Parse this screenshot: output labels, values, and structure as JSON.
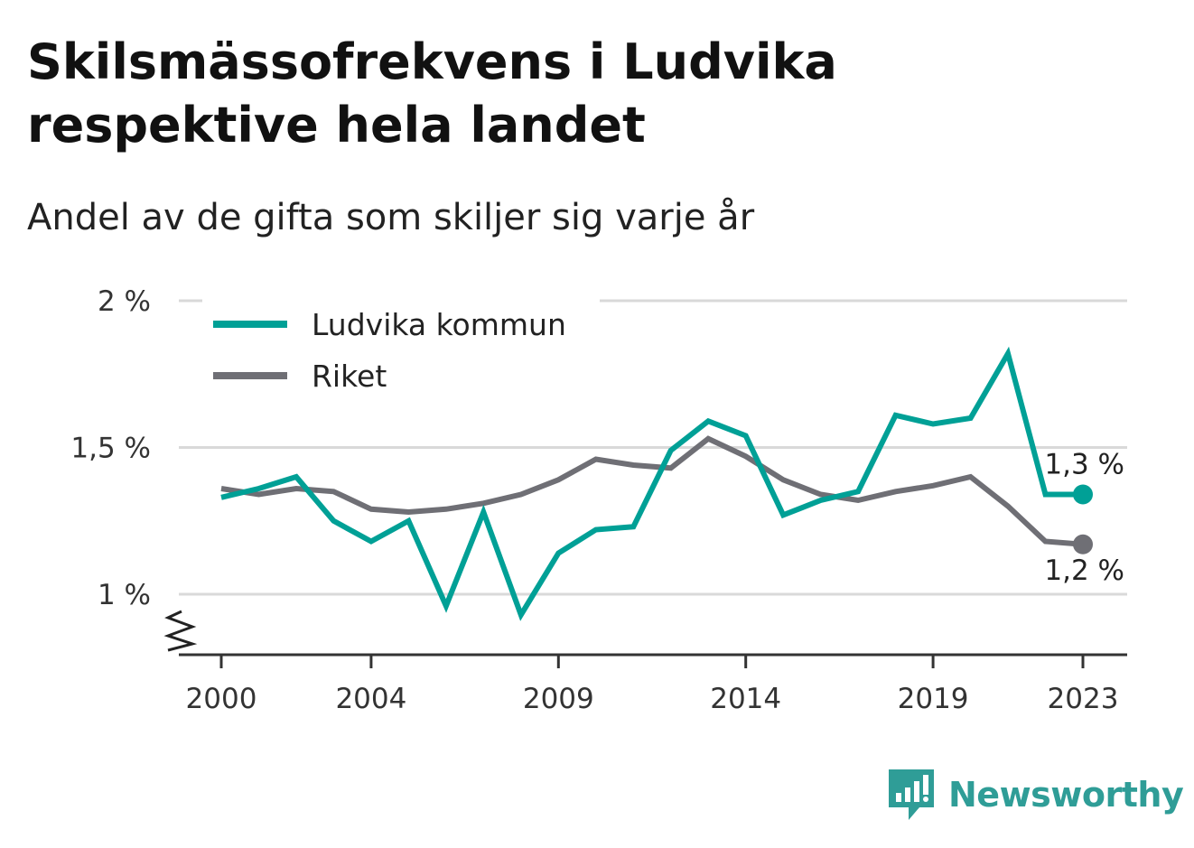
{
  "title": "Skilsmässofrekvens i Ludvika respektive hela landet",
  "subtitle": "Andel av de gifta som skiljer sig varje år",
  "brand": {
    "name": "Newsworthy",
    "icon": "newsworthy-logo-icon",
    "color": "#2f9d97"
  },
  "chart_data": {
    "type": "line",
    "x": [
      2000,
      2001,
      2002,
      2003,
      2004,
      2005,
      2006,
      2007,
      2008,
      2009,
      2010,
      2011,
      2012,
      2013,
      2014,
      2015,
      2016,
      2017,
      2018,
      2019,
      2020,
      2021,
      2022,
      2023
    ],
    "series": [
      {
        "name": "Ludvika kommun",
        "color": "#00a096",
        "values": [
          1.33,
          1.36,
          1.4,
          1.25,
          1.18,
          1.25,
          0.96,
          1.28,
          0.93,
          1.14,
          1.22,
          1.23,
          1.49,
          1.59,
          1.54,
          1.27,
          1.32,
          1.35,
          1.61,
          1.58,
          1.6,
          1.82,
          1.34,
          1.34
        ],
        "end_label": "1,3 %"
      },
      {
        "name": "Riket",
        "color": "#6f6f75",
        "values": [
          1.36,
          1.34,
          1.36,
          1.35,
          1.29,
          1.28,
          1.29,
          1.31,
          1.34,
          1.39,
          1.46,
          1.44,
          1.43,
          1.53,
          1.47,
          1.39,
          1.34,
          1.32,
          1.35,
          1.37,
          1.4,
          1.3,
          1.18,
          1.17
        ],
        "end_label": "1,2 %"
      }
    ],
    "x_ticks": [
      {
        "value": 2000,
        "label": "2000"
      },
      {
        "value": 2004,
        "label": "2004"
      },
      {
        "value": 2009,
        "label": "2009"
      },
      {
        "value": 2014,
        "label": "2014"
      },
      {
        "value": 2019,
        "label": "2019"
      },
      {
        "value": 2023,
        "label": "2023"
      }
    ],
    "y_ticks": [
      {
        "value": 1.0,
        "label": "1 %"
      },
      {
        "value": 1.5,
        "label": "1,5 %"
      },
      {
        "value": 2.0,
        "label": "2 %"
      }
    ],
    "ylim": [
      0.8,
      2.0
    ],
    "xlim": [
      1999,
      2024
    ],
    "y_axis_break": true,
    "grid": true,
    "legend_position": "top-left"
  }
}
